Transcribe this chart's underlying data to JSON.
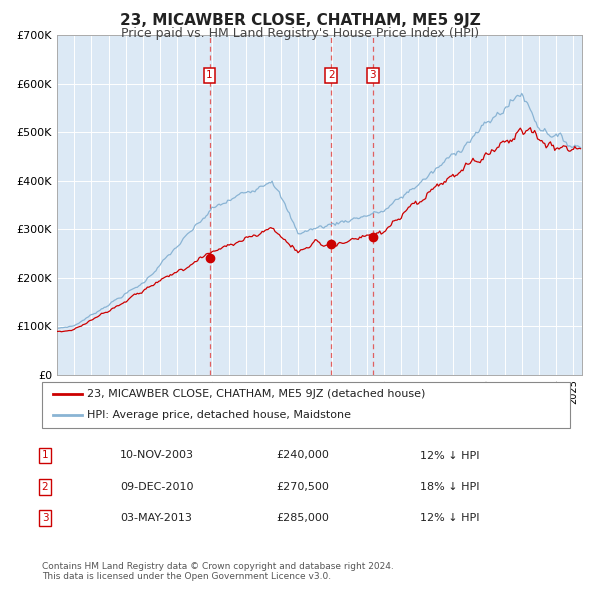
{
  "title": "23, MICAWBER CLOSE, CHATHAM, ME5 9JZ",
  "subtitle": "Price paid vs. HM Land Registry's House Price Index (HPI)",
  "background_color": "#dce9f5",
  "legend1": "23, MICAWBER CLOSE, CHATHAM, ME5 9JZ (detached house)",
  "legend2": "HPI: Average price, detached house, Maidstone",
  "legend_color1": "#cc0000",
  "legend_color2": "#8ab4d4",
  "transactions": [
    {
      "num": 1,
      "date_x": 2003.86,
      "price": 240000,
      "label": "10-NOV-2003",
      "amount": "£240,000",
      "pct": "12% ↓ HPI",
      "vline_color": "#e06060"
    },
    {
      "num": 2,
      "date_x": 2010.94,
      "price": 270500,
      "label": "09-DEC-2010",
      "amount": "£270,500",
      "pct": "18% ↓ HPI",
      "vline_color": "#e06060"
    },
    {
      "num": 3,
      "date_x": 2013.34,
      "price": 285000,
      "label": "03-MAY-2013",
      "amount": "£285,000",
      "pct": "12% ↓ HPI",
      "vline_color": "#e06060"
    }
  ],
  "xmin": 1995.0,
  "xmax": 2025.5,
  "ymin": 0,
  "ymax": 700000,
  "yticks": [
    0,
    100000,
    200000,
    300000,
    400000,
    500000,
    600000,
    700000
  ],
  "ytick_labels": [
    "£0",
    "£100K",
    "£200K",
    "£300K",
    "£400K",
    "£500K",
    "£600K",
    "£700K"
  ],
  "footer": "Contains HM Land Registry data © Crown copyright and database right 2024.\nThis data is licensed under the Open Government Licence v3.0.",
  "grid_color": "#ffffff",
  "hpi_color": "#8ab4d4",
  "price_color": "#cc0000"
}
